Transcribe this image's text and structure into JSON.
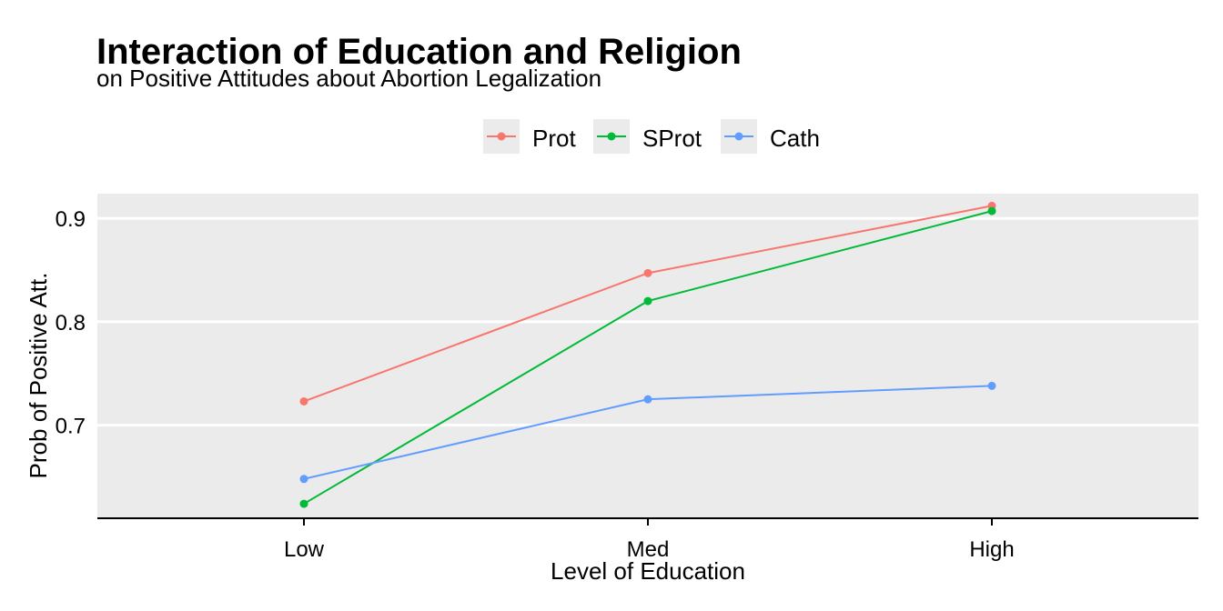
{
  "chart_data": {
    "type": "line",
    "title": "Interaction of Education and Religion",
    "subtitle": "on Positive Attitudes about Abortion Legalization",
    "xlabel": "Level of Education",
    "ylabel": "Prob of Positive Att.",
    "categories": [
      "Low",
      "Med",
      "High"
    ],
    "y_ticks": [
      0.7,
      0.8,
      0.9
    ],
    "y_tick_labels": [
      "0.7",
      "0.8",
      "0.9"
    ],
    "ylim": [
      0.61,
      0.915
    ],
    "grid": true,
    "legend_position": "top",
    "series": [
      {
        "name": "Prot",
        "color": "#F8766D",
        "values": [
          0.723,
          0.847,
          0.912
        ]
      },
      {
        "name": "SProt",
        "color": "#00BA38",
        "values": [
          0.624,
          0.82,
          0.907
        ]
      },
      {
        "name": "Cath",
        "color": "#619CFF",
        "values": [
          0.648,
          0.725,
          0.738
        ]
      }
    ],
    "panel_background": "#EBEBEB",
    "gridline_color": "#FFFFFF"
  }
}
